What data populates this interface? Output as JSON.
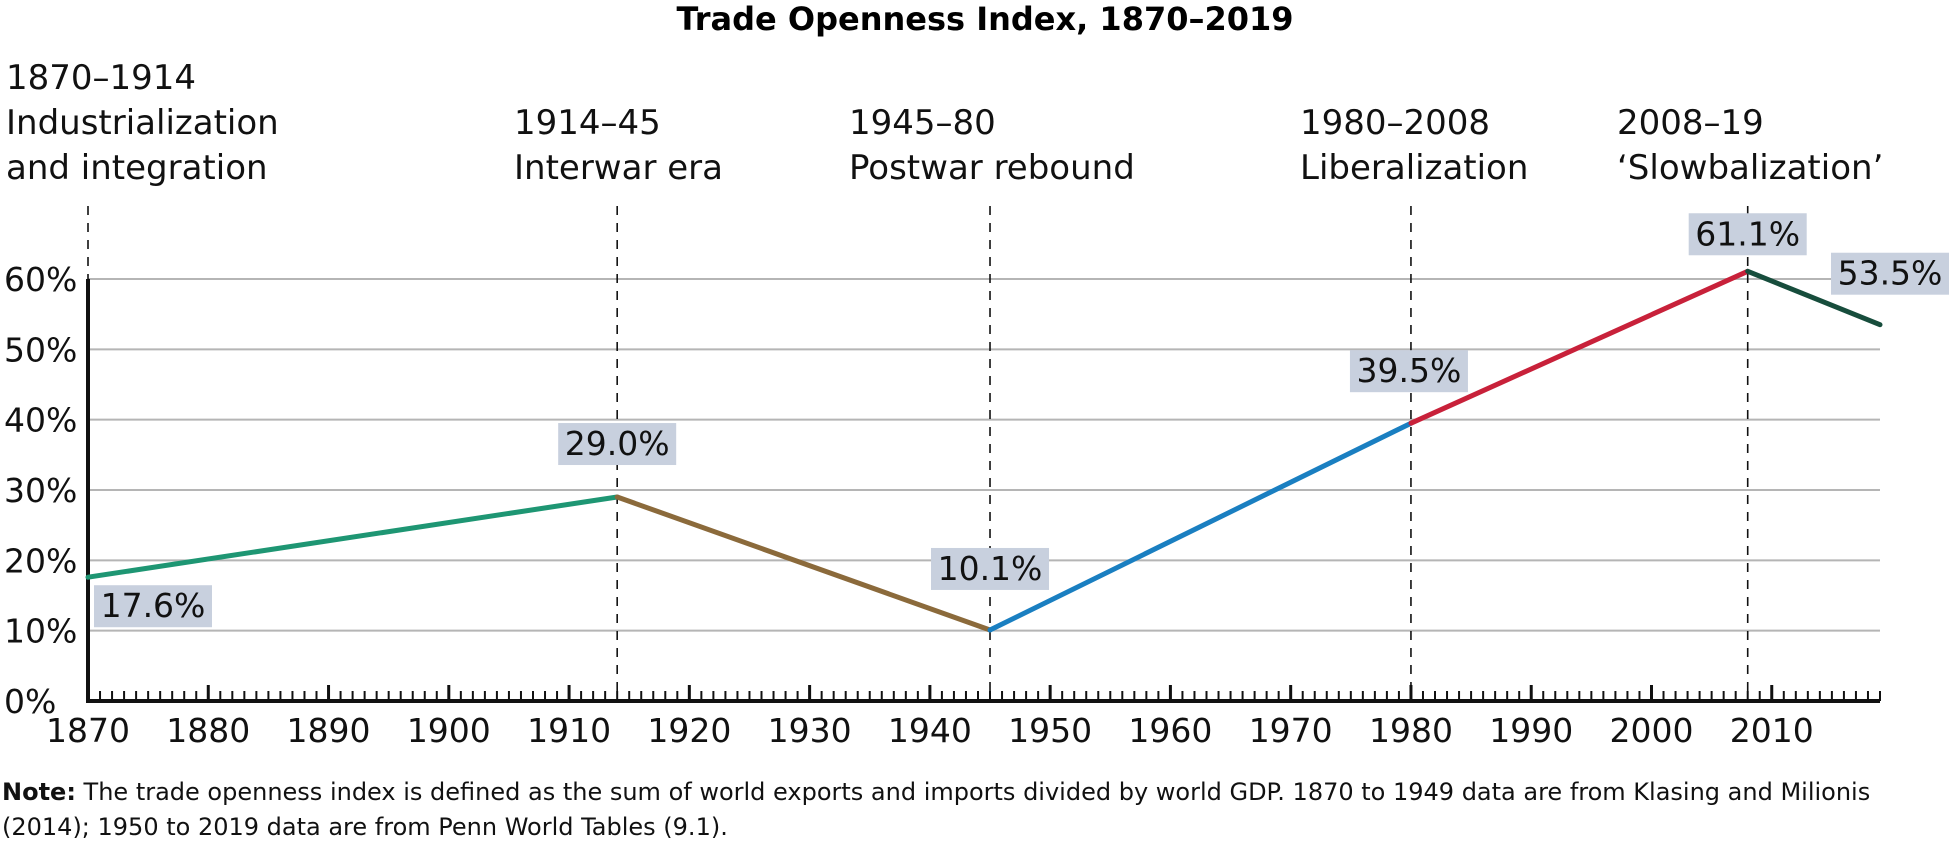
{
  "chart_data": {
    "type": "line",
    "title": "Trade Openness Index, 1870–2019",
    "xlabel": "",
    "ylabel": "",
    "xlim": [
      1870,
      2019
    ],
    "ylim": [
      0,
      60
    ],
    "grid": true,
    "y_ticks": [
      "0%",
      "10%",
      "20%",
      "30%",
      "40%",
      "50%",
      "60%"
    ],
    "x_ticks": [
      "1870",
      "1880",
      "1890",
      "1900",
      "1910",
      "1920",
      "1930",
      "1940",
      "1950",
      "1960",
      "1970",
      "1980",
      "1990",
      "2000",
      "2010"
    ],
    "eras": [
      {
        "boundary": 1870,
        "period": "1870–1914",
        "line1": "Industrialization",
        "line2": "and integration"
      },
      {
        "boundary": 1914,
        "period": "1914–45",
        "line1": "Interwar era",
        "line2": ""
      },
      {
        "boundary": 1945,
        "period": "1945–80",
        "line1": "Postwar rebound",
        "line2": ""
      },
      {
        "boundary": 1980,
        "period": "1980–2008",
        "line1": "Liberalization",
        "line2": ""
      },
      {
        "boundary": 2008,
        "period": "2008–19",
        "line1": "‘Slowbalization’",
        "line2": ""
      }
    ],
    "series": [
      {
        "x": [
          1870,
          1914
        ],
        "y": [
          17.6,
          29.0
        ],
        "color": "#1e9673"
      },
      {
        "x": [
          1914,
          1945
        ],
        "y": [
          29.0,
          10.1
        ],
        "color": "#8b6a3b"
      },
      {
        "x": [
          1945,
          1980
        ],
        "y": [
          10.1,
          39.5
        ],
        "color": "#1a7fc1"
      },
      {
        "x": [
          1980,
          2008
        ],
        "y": [
          39.5,
          61.1
        ],
        "color": "#c8213a"
      },
      {
        "x": [
          2008,
          2019
        ],
        "y": [
          61.1,
          53.5
        ],
        "color": "#174d3c"
      }
    ],
    "data_labels": [
      {
        "x": 1870,
        "y": 17.6,
        "text": "17.6%"
      },
      {
        "x": 1914,
        "y": 29.0,
        "text": "29.0%"
      },
      {
        "x": 1945,
        "y": 10.1,
        "text": "10.1%"
      },
      {
        "x": 1980,
        "y": 39.5,
        "text": "39.5%"
      },
      {
        "x": 2008,
        "y": 61.1,
        "text": "61.1%"
      },
      {
        "x": 2019,
        "y": 53.5,
        "text": "53.5%"
      }
    ],
    "label_bg_color": "#c8d0de",
    "grid_color": "#b5b5b5",
    "axis_color": "#111111"
  },
  "note": {
    "label": "Note:",
    "text": " The trade openness index is defined as the sum of world exports and imports divided by world GDP. 1870 to 1949 data are from Klasing and Milionis (2014); 1950 to 2019 data are from Penn World Tables (9.1)."
  }
}
